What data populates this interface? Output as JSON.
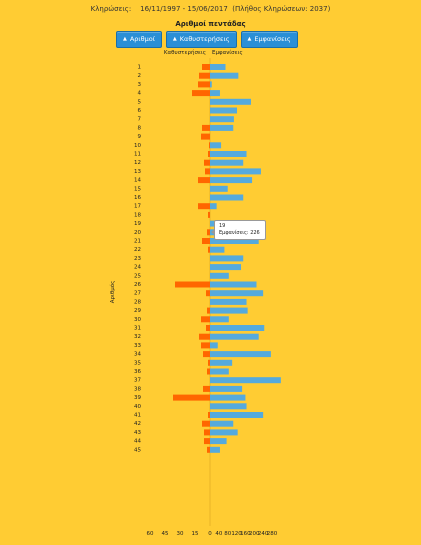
{
  "header": {
    "draws_label": "Κληρώσεις:",
    "range": "16/11/1997 - 15/06/2017",
    "count_text": "(Πλήθος Κληρώσεων: 2037)"
  },
  "title": "Αριθμοί πεντάδας",
  "tabs": [
    {
      "label": "Αριθμοί",
      "arrow": "▲"
    },
    {
      "label": "Καθυστερήσεις",
      "arrow": "▲"
    },
    {
      "label": "Εμφανίσεις",
      "arrow": "▲"
    }
  ],
  "tooltip": {
    "line1": "19",
    "line2": "Εμφανίσεις: 226"
  },
  "chart_data": {
    "type": "bar",
    "title": "Αριθμοί πεντάδας",
    "ylabel": "Αριθμός",
    "left_header": "Καθυστερήσεις",
    "right_header": "Εμφανίσεις",
    "categories": [
      "1",
      "2",
      "3",
      "4",
      "5",
      "6",
      "7",
      "8",
      "9",
      "10",
      "11",
      "12",
      "13",
      "14",
      "15",
      "16",
      "17",
      "18",
      "19",
      "20",
      "21",
      "22",
      "23",
      "24",
      "25",
      "26",
      "27",
      "28",
      "29",
      "30",
      "31",
      "32",
      "33",
      "34",
      "35",
      "36",
      "37",
      "38",
      "39",
      "40",
      "41",
      "42",
      "43",
      "44",
      "45"
    ],
    "series": [
      {
        "name": "Καθυστερήσεις",
        "color": "#FF6600",
        "xlim": [
          60,
          0
        ],
        "ticks": [
          60,
          45,
          30,
          15,
          0
        ],
        "values": [
          8,
          11,
          12,
          18,
          0,
          0,
          0,
          8,
          9,
          1,
          2,
          6,
          5,
          12,
          0,
          0,
          12,
          2,
          0,
          3,
          8,
          2,
          0,
          0,
          0,
          35,
          4,
          0,
          3,
          9,
          4,
          11,
          9,
          7,
          2,
          3,
          0,
          7,
          37,
          0,
          2,
          8,
          6,
          6,
          3
        ]
      },
      {
        "name": "Εμφανίσεις",
        "color": "#55AADD",
        "xlim": [
          0,
          280
        ],
        "ticks": [
          0,
          40,
          80,
          120,
          160,
          200,
          240,
          280
        ],
        "values": [
          70,
          128,
          8,
          45,
          185,
          122,
          108,
          105,
          0,
          50,
          165,
          150,
          230,
          190,
          80,
          150,
          30,
          0,
          226,
          75,
          220,
          65,
          150,
          140,
          85,
          210,
          240,
          165,
          170,
          85,
          245,
          220,
          35,
          275,
          100,
          85,
          320,
          145,
          160,
          165,
          240,
          105,
          125,
          75,
          45
        ]
      }
    ],
    "x_tick_labels": [
      "60",
      "45",
      "30",
      "15",
      "0",
      "0",
      "120",
      "240",
      "240",
      "280"
    ]
  }
}
